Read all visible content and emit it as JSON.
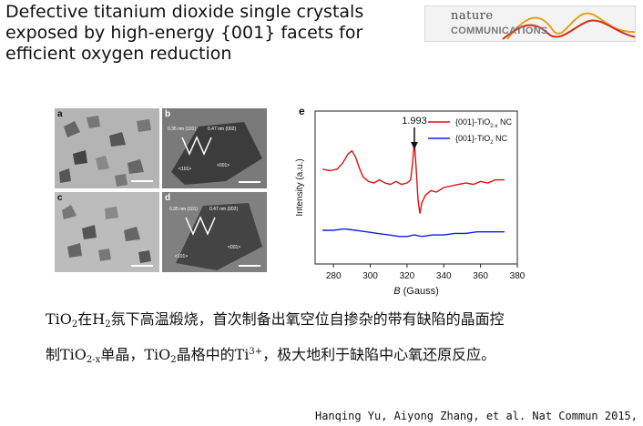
{
  "slide": {
    "title": "Defective titanium dioxide single crystals exposed by high-energy {001} facets for efficient oxygen reduction",
    "logo": {
      "word1": "nature",
      "word2": "COMMUNICATIONS"
    },
    "micrographs": {
      "panels": [
        {
          "label": "a"
        },
        {
          "label": "b",
          "annotations": [
            "0.35 nm (101)",
            "0.47 nm (002)",
            "<101>",
            "<001>"
          ]
        },
        {
          "label": "c"
        },
        {
          "label": "d",
          "annotations": [
            "0.35 nm (101)",
            "0.47 nm (002)",
            "<101>",
            "<001>"
          ]
        }
      ]
    },
    "text_parts": {
      "line1_a": "TiO",
      "sub_2": "2",
      "line1_b": "在H",
      "line1_c": "氛下高温煅烧，首次制备出氧空位自掺杂的带有缺陷的晶面控",
      "line2_a": "制TiO",
      "sub_2x": "2-x",
      "line2_b": "单晶，TiO",
      "line2_c": "晶格中的Ti",
      "sup_3": "3+",
      "line2_d": "，极大地利于缺陷中心氧还原反应。"
    },
    "citation": "Hanqing Yu, Aiyong Zhang, et al. Nat Commun 2015,"
  },
  "chart_data": {
    "type": "line",
    "panel_label": "e",
    "xlabel_italic": "B",
    "xlabel_rest": " (Gauss)",
    "ylabel": "Intensity (a.u.)",
    "xlim": [
      270,
      380
    ],
    "xticks": [
      280,
      300,
      320,
      340,
      360,
      380
    ],
    "yticks_shown": false,
    "annotation": {
      "text": "1.993",
      "x": 324
    },
    "series": [
      {
        "name_main": "{001}-TiO",
        "name_sub": "2-x",
        "name_tail": " NC",
        "color": "#e01010",
        "x": [
          274,
          278,
          282,
          285,
          288,
          290,
          292,
          294,
          296,
          299,
          302,
          305,
          308,
          311,
          314,
          317,
          320,
          322,
          323,
          324,
          325,
          326,
          327,
          328,
          330,
          333,
          336,
          340,
          344,
          348,
          352,
          356,
          360,
          364,
          368,
          373
        ],
        "y": [
          0.62,
          0.61,
          0.62,
          0.66,
          0.72,
          0.74,
          0.7,
          0.63,
          0.57,
          0.54,
          0.53,
          0.55,
          0.53,
          0.52,
          0.54,
          0.52,
          0.53,
          0.55,
          0.66,
          0.8,
          0.62,
          0.42,
          0.33,
          0.4,
          0.45,
          0.48,
          0.47,
          0.5,
          0.51,
          0.52,
          0.53,
          0.52,
          0.54,
          0.53,
          0.55,
          0.55
        ]
      },
      {
        "name_main": "{001}-TiO",
        "name_sub": "2",
        "name_tail": " NC",
        "color": "#1020e0",
        "x": [
          274,
          280,
          286,
          292,
          298,
          304,
          310,
          316,
          320,
          324,
          328,
          334,
          340,
          346,
          352,
          358,
          364,
          368,
          373
        ],
        "y": [
          0.22,
          0.22,
          0.23,
          0.22,
          0.21,
          0.2,
          0.19,
          0.18,
          0.18,
          0.19,
          0.18,
          0.19,
          0.19,
          0.2,
          0.2,
          0.21,
          0.21,
          0.21,
          0.21
        ]
      }
    ]
  }
}
